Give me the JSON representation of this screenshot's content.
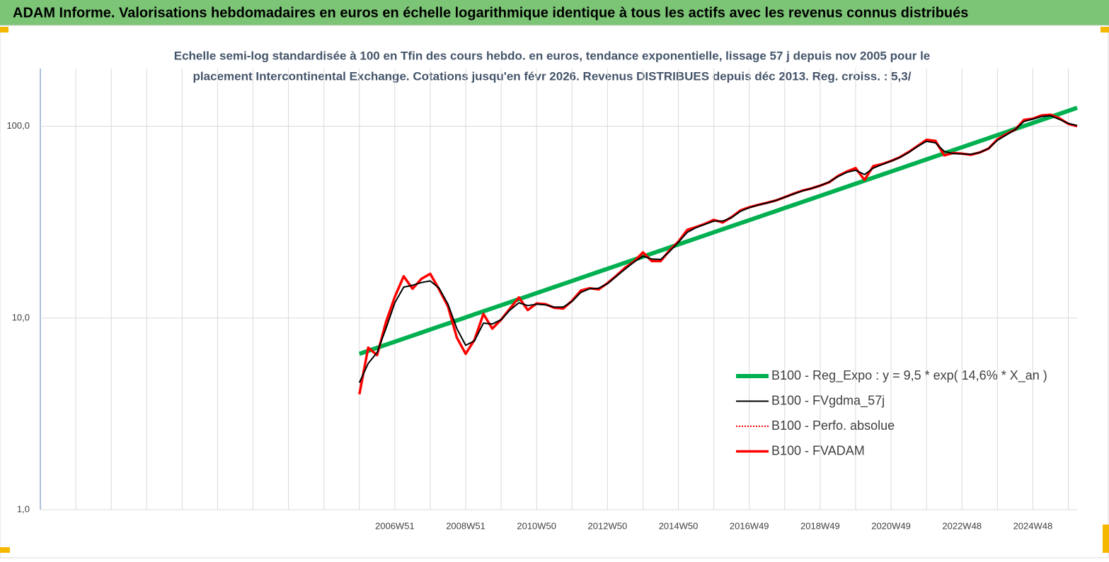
{
  "chart_data": {
    "type": "line",
    "title": "ADAM Informe. Valorisations hebdomadaires en euros en échelle logarithmique identique à tous les actifs avec les revenus connus distribués",
    "subtitle": [
      "Echelle semi-log standardisée à 100 en Tfin des cours hebdo. en euros, tendance exponentielle, lissage 57 j depuis nov 2005 pour le",
      "placement Intercontinental Exchange. Cotations jusqu'en févr 2026. Revenus DISTRIBUES depuis déc 2013. Reg. croiss. : 5,3/"
    ],
    "log_scale": true,
    "grid": true,
    "legend_position": "right",
    "ylim": [
      1,
      200
    ],
    "yticks": [
      {
        "value": 1,
        "label": "1,0"
      },
      {
        "value": 10,
        "label": "10,0"
      },
      {
        "value": 100,
        "label": "100,0"
      }
    ],
    "categories": [
      null,
      null,
      null,
      null,
      null,
      null,
      null,
      null,
      null,
      null,
      null,
      null,
      null,
      null,
      null,
      null,
      null,
      null,
      null,
      null,
      null,
      null,
      null,
      null,
      null,
      null,
      null,
      null,
      null,
      null,
      null,
      null,
      null,
      null,
      null,
      null,
      null,
      null,
      null,
      null,
      "2006W51",
      null,
      null,
      null,
      null,
      null,
      null,
      null,
      "2008W51",
      null,
      null,
      null,
      null,
      null,
      null,
      null,
      "2010W50",
      null,
      null,
      null,
      null,
      null,
      null,
      null,
      "2012W50",
      null,
      null,
      null,
      null,
      null,
      null,
      null,
      "2014W50",
      null,
      null,
      null,
      null,
      null,
      null,
      null,
      "2016W49",
      null,
      null,
      null,
      null,
      null,
      null,
      null,
      "2018W49",
      null,
      null,
      null,
      null,
      null,
      null,
      null,
      "2020W49",
      null,
      null,
      null,
      null,
      null,
      null,
      null,
      "2022W48",
      null,
      null,
      null,
      null,
      null,
      null,
      null,
      "2024W48",
      null,
      null,
      null,
      null,
      null
    ],
    "series": [
      {
        "name": "B100 - Reg_Expo : y = 9,5 * exp( 14,6% *  X_an )",
        "color": "#00b050",
        "values": [
          null,
          null,
          null,
          null,
          null,
          null,
          null,
          null,
          null,
          null,
          null,
          null,
          null,
          null,
          null,
          null,
          null,
          null,
          null,
          null,
          null,
          null,
          null,
          null,
          null,
          null,
          null,
          null,
          null,
          null,
          null,
          null,
          null,
          null,
          null,
          null,
          6.5,
          6.74,
          6.99,
          7.25,
          7.52,
          7.8,
          8.09,
          8.39,
          8.7,
          9.03,
          9.36,
          9.71,
          10.07,
          10.45,
          10.83,
          11.24,
          11.65,
          12.09,
          12.54,
          13.0,
          13.49,
          13.99,
          14.51,
          15.05,
          15.61,
          16.19,
          16.79,
          17.41,
          18.06,
          18.73,
          19.43,
          20.15,
          20.9,
          21.68,
          22.48,
          23.32,
          24.18,
          25.08,
          26.01,
          26.98,
          27.98,
          29.02,
          30.1,
          31.22,
          32.38,
          33.58,
          34.83,
          36.12,
          37.47,
          38.86,
          40.3,
          41.8,
          43.35,
          44.96,
          46.63,
          48.37,
          50.16,
          52.03,
          53.96,
          55.97,
          58.05,
          60.2,
          62.44,
          64.76,
          67.17,
          69.66,
          72.25,
          74.94,
          77.72,
          80.61,
          83.61,
          86.71,
          89.94,
          93.28,
          96.75,
          100.3,
          104.1,
          107.9,
          111.9,
          116.1,
          120.4,
          124.9
        ]
      },
      {
        "name": "B100 - FVgdma_57j",
        "color": "#000000",
        "values": [
          null,
          null,
          null,
          null,
          null,
          null,
          null,
          null,
          null,
          null,
          null,
          null,
          null,
          null,
          null,
          null,
          null,
          null,
          null,
          null,
          null,
          null,
          null,
          null,
          null,
          null,
          null,
          null,
          null,
          null,
          null,
          null,
          null,
          null,
          null,
          null,
          4.6,
          5.8,
          6.6,
          8.8,
          12.0,
          14.5,
          14.8,
          15.3,
          15.6,
          14.3,
          11.8,
          8.8,
          7.2,
          7.6,
          9.4,
          9.3,
          9.8,
          11.0,
          12.0,
          11.6,
          11.8,
          11.7,
          11.4,
          11.4,
          12.2,
          13.6,
          14.2,
          14.3,
          15.1,
          16.5,
          18.0,
          19.6,
          21.0,
          20.3,
          20.2,
          22.2,
          24.8,
          28.0,
          29.6,
          30.8,
          32.0,
          32.0,
          33.4,
          36.0,
          37.6,
          38.8,
          39.8,
          41.0,
          42.6,
          44.3,
          46.0,
          47.4,
          49.0,
          51.2,
          54.6,
          57.5,
          59.0,
          56.0,
          60.5,
          63.2,
          65.8,
          68.8,
          73.0,
          78.5,
          83.5,
          82.0,
          74.0,
          72.0,
          71.8,
          71.5,
          73.0,
          76.5,
          84.5,
          90.0,
          96.0,
          106.0,
          109.0,
          112.5,
          113.5,
          108.5,
          103.5,
          101.0
        ]
      },
      {
        "name": "B100 - Perfo. absolue",
        "color": "#ff0000",
        "style": "dotted",
        "values": [
          null,
          null,
          null,
          null,
          null,
          null,
          null,
          null,
          null,
          null,
          null,
          null,
          null,
          null,
          null,
          null,
          null,
          null,
          null,
          null,
          null,
          null,
          null,
          null,
          null,
          null,
          null,
          null,
          null,
          null,
          null,
          null,
          null,
          null,
          null,
          null,
          4.0,
          7.0,
          6.4,
          9.5,
          12.9,
          16.5,
          14.2,
          16.0,
          17.0,
          14.1,
          11.5,
          7.9,
          6.5,
          7.7,
          10.5,
          8.8,
          9.8,
          11.2,
          12.8,
          11.0,
          11.9,
          11.8,
          11.3,
          11.2,
          12.3,
          13.9,
          14.3,
          14.1,
          15.2,
          16.6,
          18.3,
          19.7,
          22.0,
          19.8,
          19.8,
          22.5,
          25.0,
          28.8,
          29.8,
          31.0,
          32.5,
          31.5,
          33.6,
          36.4,
          37.8,
          38.9,
          39.9,
          41.0,
          42.7,
          44.5,
          46.2,
          47.4,
          49.0,
          51.0,
          55.0,
          58.0,
          60.5,
          52.5,
          62.0,
          63.5,
          66.0,
          69.0,
          73.5,
          79.0,
          85.0,
          84.0,
          70.5,
          72.5,
          72.0,
          71.0,
          73.0,
          76.5,
          85.5,
          91.0,
          96.0,
          108.0,
          109.5,
          114.0,
          115.0,
          110.0,
          103.0,
          100.0
        ]
      },
      {
        "name": "B100 - FVADAM",
        "color": "#ff0000",
        "values": [
          null,
          null,
          null,
          null,
          null,
          null,
          null,
          null,
          null,
          null,
          null,
          null,
          null,
          null,
          null,
          null,
          null,
          null,
          null,
          null,
          null,
          null,
          null,
          null,
          null,
          null,
          null,
          null,
          null,
          null,
          null,
          null,
          null,
          null,
          null,
          null,
          4.0,
          7.0,
          6.4,
          9.5,
          12.9,
          16.5,
          14.2,
          16.0,
          17.0,
          14.1,
          11.5,
          7.9,
          6.5,
          7.7,
          10.5,
          8.8,
          9.8,
          11.2,
          12.8,
          11.0,
          11.9,
          11.8,
          11.3,
          11.2,
          12.3,
          13.9,
          14.3,
          14.1,
          15.2,
          16.6,
          18.3,
          19.7,
          22.0,
          19.8,
          19.8,
          22.5,
          25.0,
          28.8,
          29.8,
          31.0,
          32.5,
          31.5,
          33.6,
          36.4,
          37.8,
          38.9,
          39.9,
          41.0,
          42.7,
          44.5,
          46.2,
          47.4,
          49.0,
          51.0,
          55.0,
          58.0,
          60.5,
          52.5,
          62.0,
          63.5,
          66.0,
          69.0,
          73.5,
          79.0,
          85.0,
          84.0,
          70.5,
          72.5,
          72.0,
          71.0,
          73.0,
          76.5,
          85.5,
          91.0,
          96.0,
          108.0,
          109.5,
          114.0,
          115.0,
          110.0,
          103.0,
          100.0
        ]
      }
    ]
  }
}
